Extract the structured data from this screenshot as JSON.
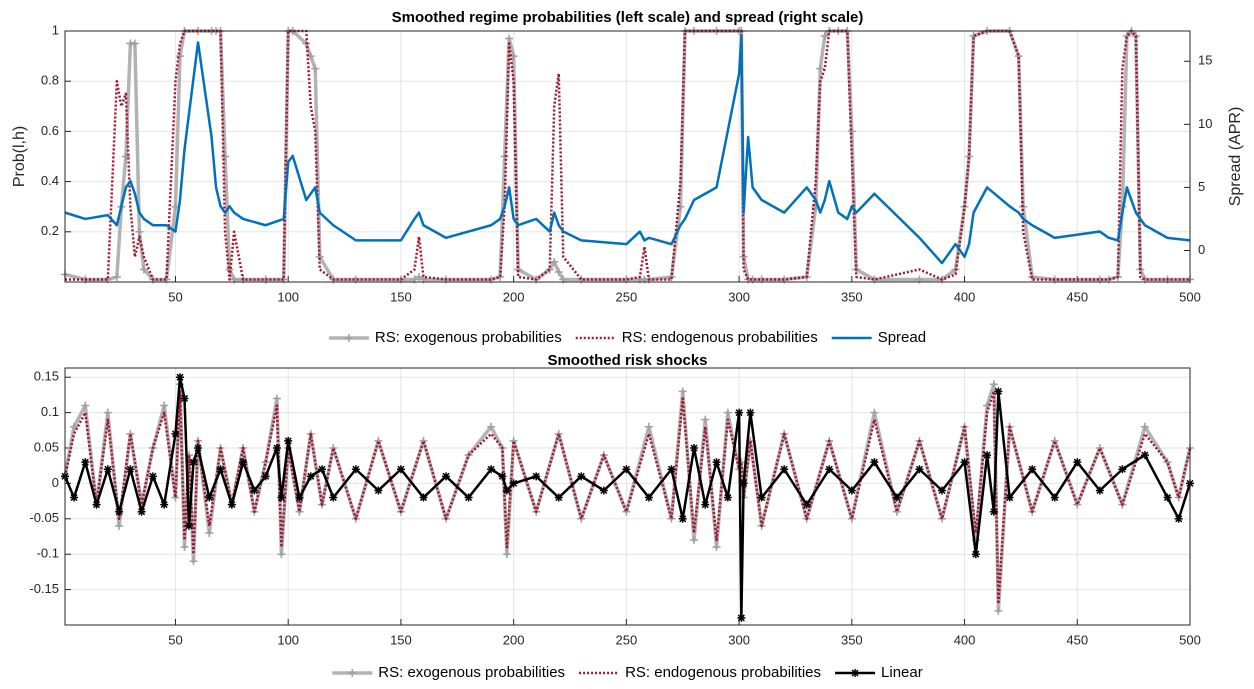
{
  "chart_data": [
    {
      "type": "line",
      "title": "Smoothed regime probabilities (left scale) and spread (right scale)",
      "y_label": "Prob(l,h)",
      "y2_label": "Spread (APR)",
      "xlim": [
        1,
        500
      ],
      "xticks": [
        50,
        100,
        150,
        200,
        250,
        300,
        350,
        400,
        450,
        500
      ],
      "ylim": [
        0,
        1
      ],
      "yticks": [
        0.2,
        0.4,
        0.6,
        0.8,
        1
      ],
      "y2lim": [
        -2.5,
        17.4
      ],
      "y2ticks": [
        0,
        5,
        10,
        15
      ],
      "grid": true,
      "x": [
        1,
        10,
        20,
        24,
        26,
        28,
        30,
        32,
        34,
        36,
        40,
        46,
        50,
        52,
        54,
        60,
        66,
        68,
        70,
        72,
        74,
        76,
        80,
        90,
        98,
        100,
        102,
        108,
        110,
        112,
        114,
        120,
        130,
        150,
        156,
        158,
        160,
        170,
        190,
        194,
        196,
        198,
        200,
        202,
        210,
        216,
        218,
        220,
        222,
        230,
        250,
        256,
        258,
        260,
        270,
        274,
        276,
        280,
        290,
        300,
        301,
        302,
        304,
        306,
        310,
        320,
        330,
        334,
        336,
        338,
        340,
        344,
        348,
        350,
        352,
        360,
        380,
        390,
        396,
        400,
        402,
        404,
        410,
        420,
        424,
        426,
        430,
        440,
        460,
        464,
        468,
        470,
        472,
        474,
        476,
        478,
        480,
        490,
        500
      ],
      "series": [
        {
          "name": "RS: exogenous probabilities",
          "color": "#b3b3b3",
          "line_style": "solid",
          "marker": "+",
          "values": [
            0.03,
            0.01,
            0.01,
            0.02,
            0.3,
            0.5,
            0.95,
            0.95,
            0.2,
            0.05,
            0.01,
            0.01,
            0.3,
            0.9,
            1,
            1,
            1,
            1,
            1,
            0.5,
            0.05,
            0.01,
            0.01,
            0.01,
            0.01,
            1,
            1,
            0.95,
            0.9,
            0.85,
            0.1,
            0.01,
            0.01,
            0.01,
            0.01,
            0.02,
            0.01,
            0.01,
            0.01,
            0.02,
            0.5,
            0.97,
            0.9,
            0.05,
            0.01,
            0.05,
            0.08,
            0.04,
            0.01,
            0.01,
            0.01,
            0.01,
            0.01,
            0.01,
            0.02,
            0.3,
            1,
            1,
            1,
            1,
            1,
            0.1,
            0.01,
            0.01,
            0.01,
            0.01,
            0.02,
            0.3,
            0.85,
            0.98,
            1,
            1,
            1,
            0.6,
            0.05,
            0.01,
            0.01,
            0.01,
            0.05,
            0.3,
            0.5,
            0.98,
            1,
            1,
            0.9,
            0.3,
            0.02,
            0.01,
            0.01,
            0.01,
            0.02,
            0.3,
            0.98,
            1,
            0.98,
            0.05,
            0.01,
            0.01,
            0.01
          ]
        },
        {
          "name": "RS: endogenous probabilities",
          "color": "#a2142f",
          "line_style": "dotted",
          "values": [
            0.01,
            0.01,
            0.01,
            0.8,
            0.7,
            0.75,
            0.3,
            0.1,
            0.18,
            0.1,
            0.01,
            0.01,
            0.8,
            0.95,
            1,
            1,
            1,
            1,
            1,
            0.2,
            0.01,
            0.2,
            0.01,
            0.01,
            0.01,
            1,
            1,
            1,
            0.7,
            0.6,
            0.05,
            0.01,
            0.01,
            0.01,
            0.05,
            0.18,
            0.02,
            0.01,
            0.01,
            0.02,
            0.3,
            0.95,
            0.8,
            0.02,
            0.01,
            0.05,
            0.7,
            0.83,
            0.1,
            0.01,
            0.01,
            0.02,
            0.14,
            0.01,
            0.01,
            0.4,
            1,
            1,
            1,
            1,
            1,
            0.05,
            0.01,
            0.01,
            0.01,
            0.01,
            0.02,
            0.4,
            0.8,
            0.85,
            1,
            1,
            1,
            0.5,
            0.02,
            0.01,
            0.05,
            0.01,
            0.03,
            0.3,
            0.5,
            0.98,
            1,
            1,
            0.9,
            0.2,
            0.01,
            0.01,
            0.01,
            0.01,
            0.02,
            0.85,
            0.98,
            1,
            0.98,
            0.02,
            0.01,
            0.01,
            0.01
          ]
        },
        {
          "name": "Spread",
          "color": "#0072bd",
          "line_style": "solid",
          "axis": "y2",
          "values": [
            3,
            2.5,
            2.8,
            2,
            3.5,
            5,
            5.5,
            4.5,
            3,
            2.5,
            2,
            2,
            1.5,
            4,
            8,
            16.5,
            9,
            5,
            3.5,
            3,
            3.5,
            3,
            2.5,
            2,
            2.5,
            7,
            7.5,
            4,
            4.5,
            5,
            3,
            2,
            0.8,
            0.8,
            2.5,
            3,
            2,
            1,
            2,
            2.5,
            3.5,
            5,
            2.5,
            2,
            2.5,
            1.5,
            3,
            2,
            1.5,
            0.8,
            0.5,
            1.5,
            0.8,
            1,
            0.5,
            2,
            2.5,
            4,
            5,
            14,
            17,
            3,
            9,
            5,
            4,
            3,
            5,
            4,
            3,
            4,
            5.5,
            3,
            2.5,
            3.5,
            3,
            4.5,
            1,
            -1,
            0.5,
            -0.5,
            0.5,
            3,
            5,
            3.5,
            3,
            2.5,
            2,
            1,
            1.5,
            1,
            0.8,
            3,
            5,
            4,
            3,
            2.5,
            2,
            1,
            0.8
          ]
        }
      ]
    },
    {
      "type": "line",
      "title": "Smoothed risk shocks",
      "xlim": [
        1,
        500
      ],
      "xticks": [
        50,
        100,
        150,
        200,
        250,
        300,
        350,
        400,
        450,
        500
      ],
      "ylim": [
        -0.2,
        0.163
      ],
      "yticks": [
        -0.15,
        -0.1,
        -0.05,
        0,
        0.05,
        0.1,
        0.15
      ],
      "grid": true,
      "x": [
        1,
        5,
        10,
        15,
        20,
        25,
        30,
        35,
        40,
        45,
        50,
        52,
        54,
        56,
        58,
        60,
        65,
        70,
        75,
        80,
        85,
        90,
        95,
        97,
        100,
        105,
        110,
        115,
        120,
        130,
        140,
        150,
        160,
        170,
        180,
        190,
        195,
        197,
        200,
        210,
        220,
        230,
        240,
        250,
        260,
        270,
        275,
        280,
        285,
        290,
        295,
        300,
        301,
        302,
        305,
        310,
        320,
        330,
        340,
        350,
        360,
        370,
        380,
        390,
        400,
        405,
        410,
        413,
        415,
        420,
        430,
        440,
        450,
        460,
        470,
        480,
        490,
        495,
        500
      ],
      "series": [
        {
          "name": "RS: exogenous probabilities",
          "color": "#b3b3b3",
          "line_style": "solid",
          "marker": "+",
          "values": [
            0.01,
            0.08,
            0.11,
            -0.03,
            0.1,
            -0.06,
            0.07,
            -0.03,
            0.05,
            0.11,
            -0.02,
            0.14,
            -0.09,
            0.04,
            -0.11,
            0.06,
            -0.07,
            0.05,
            -0.03,
            0.05,
            -0.04,
            0.03,
            0.12,
            -0.1,
            0.05,
            -0.04,
            0.07,
            -0.03,
            0.05,
            -0.05,
            0.06,
            -0.04,
            0.06,
            -0.05,
            0.04,
            0.08,
            0.05,
            -0.1,
            0.06,
            -0.04,
            0.07,
            -0.05,
            0.04,
            -0.04,
            0.08,
            -0.05,
            0.13,
            -0.08,
            0.09,
            -0.09,
            0.1,
            0.02,
            0.03,
            -0.02,
            0.06,
            -0.06,
            0.07,
            -0.05,
            0.06,
            -0.05,
            0.1,
            -0.04,
            0.06,
            -0.05,
            0.08,
            -0.08,
            0.11,
            0.14,
            -0.18,
            0.08,
            -0.04,
            0.06,
            -0.03,
            0.05,
            -0.03,
            0.08,
            0.03,
            -0.02,
            0.05
          ]
        },
        {
          "name": "RS: endogenous probabilities",
          "color": "#a2142f",
          "line_style": "dotted",
          "values": [
            0.01,
            0.07,
            0.1,
            -0.03,
            0.09,
            -0.05,
            0.07,
            -0.03,
            0.05,
            0.1,
            -0.02,
            0.13,
            -0.08,
            0.04,
            -0.1,
            0.06,
            -0.06,
            0.05,
            -0.03,
            0.05,
            -0.04,
            0.03,
            0.11,
            -0.09,
            0.05,
            -0.04,
            0.07,
            -0.03,
            0.05,
            -0.05,
            0.06,
            -0.04,
            0.06,
            -0.05,
            0.04,
            0.07,
            0.05,
            -0.09,
            0.06,
            -0.04,
            0.07,
            -0.05,
            0.04,
            -0.04,
            0.07,
            -0.05,
            0.12,
            -0.07,
            0.08,
            -0.08,
            0.09,
            0.02,
            0.03,
            -0.02,
            0.06,
            -0.06,
            0.07,
            -0.05,
            0.06,
            -0.05,
            0.09,
            -0.04,
            0.06,
            -0.05,
            0.08,
            -0.07,
            0.1,
            0.13,
            -0.17,
            0.08,
            -0.04,
            0.06,
            -0.03,
            0.05,
            -0.03,
            0.07,
            0.03,
            -0.02,
            0.05
          ]
        },
        {
          "name": "Linear",
          "color": "#000000",
          "line_style": "solid",
          "marker": "*",
          "values": [
            0.01,
            -0.02,
            0.03,
            -0.03,
            0.02,
            -0.04,
            0.02,
            -0.04,
            0.01,
            -0.03,
            0.07,
            0.15,
            0.12,
            -0.06,
            0.03,
            0.05,
            -0.02,
            0.02,
            -0.03,
            0.03,
            -0.01,
            0.01,
            0.05,
            -0.02,
            0.06,
            -0.02,
            0.01,
            0.02,
            -0.02,
            0.02,
            -0.01,
            0.02,
            -0.02,
            0.01,
            -0.02,
            0.02,
            0.01,
            -0.01,
            0,
            0.01,
            -0.02,
            0.01,
            -0.01,
            0.02,
            -0.02,
            0.02,
            -0.05,
            0.05,
            -0.03,
            0.03,
            -0.02,
            0.1,
            -0.19,
            0,
            0.1,
            -0.02,
            0.02,
            -0.03,
            0.02,
            -0.01,
            0.03,
            -0.02,
            0.02,
            -0.01,
            0.03,
            -0.1,
            0.04,
            -0.04,
            0.13,
            -0.02,
            0.02,
            -0.02,
            0.03,
            -0.01,
            0.02,
            0.04,
            -0.02,
            -0.05,
            0
          ]
        }
      ]
    }
  ]
}
